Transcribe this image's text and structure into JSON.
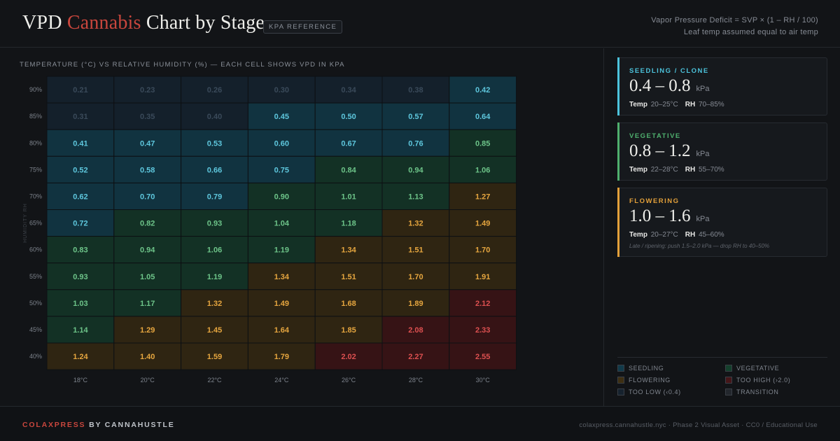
{
  "header": {
    "title_part1": "VPD ",
    "title_accent": "Cannabis",
    "title_part2": " Chart by Stage",
    "badge": "KPA REFERENCE",
    "formula_line1": "Vapor Pressure Deficit  =  SVP × (1 – RH / 100)",
    "formula_line2": "Leaf temp assumed equal to air temp"
  },
  "chart_caption": "TEMPERATURE (°C) VS RELATIVE HUMIDITY (%) — EACH CELL SHOWS VPD IN KPA",
  "chart_data": {
    "type": "heatmap",
    "title": "TEMPERATURE (°C) VS RELATIVE HUMIDITY (%) — EACH CELL SHOWS VPD IN KPA",
    "xlabel": "",
    "ylabel": "HUMIDITY RH",
    "x": [
      "18°C",
      "20°C",
      "22°C",
      "24°C",
      "26°C",
      "28°C",
      "30°C"
    ],
    "y": [
      "90%",
      "85%",
      "80%",
      "75%",
      "70%",
      "65%",
      "60%",
      "55%",
      "50%",
      "45%",
      "40%"
    ],
    "values": [
      [
        0.21,
        0.23,
        0.26,
        0.3,
        0.34,
        0.38,
        0.42
      ],
      [
        0.31,
        0.35,
        0.4,
        0.45,
        0.5,
        0.57,
        0.64
      ],
      [
        0.41,
        0.47,
        0.53,
        0.6,
        0.67,
        0.76,
        0.85
      ],
      [
        0.52,
        0.58,
        0.66,
        0.75,
        0.84,
        0.94,
        1.06
      ],
      [
        0.62,
        0.7,
        0.79,
        0.9,
        1.01,
        1.13,
        1.27
      ],
      [
        0.72,
        0.82,
        0.93,
        1.04,
        1.18,
        1.32,
        1.49
      ],
      [
        0.83,
        0.94,
        1.06,
        1.19,
        1.34,
        1.51,
        1.7
      ],
      [
        0.93,
        1.05,
        1.19,
        1.34,
        1.51,
        1.7,
        1.91
      ],
      [
        1.03,
        1.17,
        1.32,
        1.49,
        1.68,
        1.89,
        2.12
      ],
      [
        1.14,
        1.29,
        1.45,
        1.64,
        1.85,
        2.08,
        2.33
      ],
      [
        1.24,
        1.4,
        1.59,
        1.79,
        2.02,
        2.27,
        2.55
      ]
    ],
    "zones": [
      [
        "low",
        "low",
        "low",
        "low",
        "low",
        "low",
        "seedling"
      ],
      [
        "low",
        "low",
        "low",
        "seedling",
        "seedling",
        "seedling",
        "seedling"
      ],
      [
        "seedling",
        "seedling",
        "seedling",
        "seedling",
        "seedling",
        "seedling",
        "vegetative"
      ],
      [
        "seedling",
        "seedling",
        "seedling",
        "seedling",
        "vegetative",
        "vegetative",
        "vegetative"
      ],
      [
        "seedling",
        "seedling",
        "seedling",
        "vegetative",
        "vegetative",
        "vegetative",
        "flowering"
      ],
      [
        "seedling",
        "vegetative",
        "vegetative",
        "vegetative",
        "vegetative",
        "flowering",
        "flowering"
      ],
      [
        "vegetative",
        "vegetative",
        "vegetative",
        "vegetative",
        "flowering",
        "flowering",
        "flowering"
      ],
      [
        "vegetative",
        "vegetative",
        "vegetative",
        "flowering",
        "flowering",
        "flowering",
        "flowering"
      ],
      [
        "vegetative",
        "vegetative",
        "flowering",
        "flowering",
        "flowering",
        "flowering",
        "high"
      ],
      [
        "vegetative",
        "flowering",
        "flowering",
        "flowering",
        "flowering",
        "high",
        "high"
      ],
      [
        "flowering",
        "flowering",
        "flowering",
        "flowering",
        "high",
        "high",
        "high"
      ]
    ],
    "zone_colors": {
      "low": {
        "fill": "#14202b",
        "text": "#3a4a5a"
      },
      "seedling": {
        "fill": "#113340",
        "text": "#5ec7dd"
      },
      "vegetative": {
        "fill": "#133125",
        "text": "#6dc489"
      },
      "flowering": {
        "fill": "#2f2512",
        "text": "#e6a63f"
      },
      "high": {
        "fill": "#361315",
        "text": "#dd5050"
      }
    },
    "grid": true,
    "legend_position": "bottom-right"
  },
  "stages": [
    {
      "name": "SEEDLING / CLONE",
      "range": "0.4 – 0.8",
      "unit": "kPa",
      "temp_label": "Temp",
      "temp": "20–25°C",
      "rh_label": "RH",
      "rh": "70–85%",
      "color": "#4cc3dc",
      "note": ""
    },
    {
      "name": "VEGETATIVE",
      "range": "0.8 – 1.2",
      "unit": "kPa",
      "temp_label": "Temp",
      "temp": "22–28°C",
      "rh_label": "RH",
      "rh": "55–70%",
      "color": "#4fb06e",
      "note": ""
    },
    {
      "name": "FLOWERING",
      "range": "1.0 – 1.6",
      "unit": "kPa",
      "temp_label": "Temp",
      "temp": "20–27°C",
      "rh_label": "RH",
      "rh": "45–60%",
      "color": "#e3a03a",
      "note": "Late / ripening: push 1.5–2.0 kPa — drop RH to 40–50%"
    }
  ],
  "legend": [
    {
      "label": "SEEDLING",
      "color": "#113a4a"
    },
    {
      "label": "VEGETATIVE",
      "color": "#14402c"
    },
    {
      "label": "FLOWERING",
      "color": "#3e2f12"
    },
    {
      "label": "TOO HIGH (›2.0)",
      "color": "#451619"
    },
    {
      "label": "TOO LOW (‹0.4)",
      "color": "#16222e"
    },
    {
      "label": "TRANSITION",
      "color": "#23272d"
    }
  ],
  "footer": {
    "brand_accent": "COLAXPRESS",
    "brand_rest": " BY CANNAHUSTLE",
    "meta": "colaxpress.cannahustle.nyc  ·  Phase 2 Visual Asset  ·  CC0 / Educational Use"
  }
}
